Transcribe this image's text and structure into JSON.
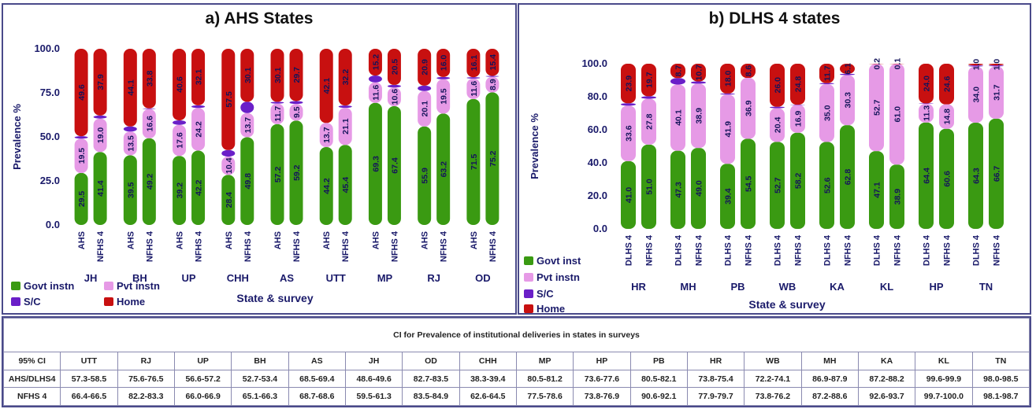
{
  "colors": {
    "govt": "#3a9a12",
    "pvt": "#e69ae6",
    "sc": "#6a1fc8",
    "home": "#c81010"
  },
  "chart_data": [
    {
      "type": "bar",
      "title": "a) AHS States",
      "ylabel": "Prevalence %",
      "xlabel": "State & survey",
      "ylim": [
        0,
        100
      ],
      "yticks": [
        "0.0",
        "25.0",
        "50.0",
        "75.0",
        "100.0"
      ],
      "legend": [
        "Govt instn",
        "Pvt instn",
        "S/C",
        "Home"
      ],
      "groups": [
        {
          "state": "JH",
          "bars": [
            {
              "survey": "AHS",
              "govt": 29.5,
              "pvt": 19.5,
              "sc": 1.4,
              "home": 49.6,
              "labels": [
                "29.5",
                "19.5",
                "",
                "49.6"
              ]
            },
            {
              "survey": "NFHS 4",
              "govt": 41.4,
              "pvt": 19.0,
              "sc": 1.7,
              "home": 37.9,
              "labels": [
                "41.4",
                "19.0",
                "",
                "37.9"
              ]
            }
          ]
        },
        {
          "state": "BH",
          "bars": [
            {
              "survey": "AHS",
              "govt": 39.5,
              "pvt": 13.5,
              "sc": 2.9,
              "home": 44.1,
              "labels": [
                "39.5",
                "13.5",
                "",
                "44.1"
              ]
            },
            {
              "survey": "NFHS 4",
              "govt": 49.2,
              "pvt": 16.6,
              "sc": 0.4,
              "home": 33.8,
              "labels": [
                "49.2",
                "16.6",
                "",
                "33.8"
              ]
            }
          ]
        },
        {
          "state": "UP",
          "bars": [
            {
              "survey": "AHS",
              "govt": 39.2,
              "pvt": 17.6,
              "sc": 2.6,
              "home": 40.6,
              "labels": [
                "39.2",
                "17.6",
                "",
                "40.6"
              ]
            },
            {
              "survey": "NFHS 4",
              "govt": 42.2,
              "pvt": 24.2,
              "sc": 1.5,
              "home": 32.1,
              "labels": [
                "42.2",
                "24.2",
                "",
                "32.1"
              ]
            }
          ]
        },
        {
          "state": "CHH",
          "bars": [
            {
              "survey": "AHS",
              "govt": 28.4,
              "pvt": 10.4,
              "sc": 3.7,
              "home": 57.5,
              "labels": [
                "28.4",
                "10.4",
                "",
                "57.5"
              ]
            },
            {
              "survey": "NFHS 4",
              "govt": 49.8,
              "pvt": 13.7,
              "sc": 6.4,
              "home": 30.1,
              "labels": [
                "49.8",
                "13.7",
                "",
                "30.1"
              ]
            }
          ]
        },
        {
          "state": "AS",
          "bars": [
            {
              "survey": "AHS",
              "govt": 57.2,
              "pvt": 11.7,
              "sc": 1.0,
              "home": 30.1,
              "labels": [
                "57.2",
                "11.7",
                "",
                "30.1"
              ]
            },
            {
              "survey": "NFHS 4",
              "govt": 59.2,
              "pvt": 9.5,
              "sc": 1.6,
              "home": 29.7,
              "labels": [
                "59.2",
                "9.5",
                "",
                "29.7"
              ]
            }
          ]
        },
        {
          "state": "UTT",
          "bars": [
            {
              "survey": "AHS",
              "govt": 44.2,
              "pvt": 13.7,
              "sc": 0.0,
              "home": 42.1,
              "labels": [
                "44.2",
                "13.7",
                "",
                "42.1"
              ]
            },
            {
              "survey": "NFHS 4",
              "govt": 45.4,
              "pvt": 21.1,
              "sc": 1.3,
              "home": 32.2,
              "labels": [
                "45.4",
                "21.1",
                "",
                "32.2"
              ]
            }
          ]
        },
        {
          "state": "MP",
          "bars": [
            {
              "survey": "AHS",
              "govt": 69.3,
              "pvt": 11.6,
              "sc": 3.9,
              "home": 15.2,
              "labels": [
                "69.3",
                "11.6",
                "",
                "15.2"
              ]
            },
            {
              "survey": "NFHS 4",
              "govt": 67.4,
              "pvt": 10.6,
              "sc": 1.5,
              "home": 20.5,
              "labels": [
                "67.4",
                "10.6",
                "",
                "20.5"
              ]
            }
          ]
        },
        {
          "state": "RJ",
          "bars": [
            {
              "survey": "AHS",
              "govt": 55.9,
              "pvt": 20.1,
              "sc": 3.1,
              "home": 20.9,
              "labels": [
                "55.9",
                "20.1",
                "",
                "20.9"
              ]
            },
            {
              "survey": "NFHS 4",
              "govt": 63.2,
              "pvt": 19.5,
              "sc": 1.3,
              "home": 16.0,
              "labels": [
                "63.2",
                "19.5",
                "",
                "16.0"
              ]
            }
          ]
        },
        {
          "state": "OD",
          "bars": [
            {
              "survey": "AHS",
              "govt": 71.5,
              "pvt": 11.6,
              "sc": 0.8,
              "home": 16.1,
              "labels": [
                "71.5",
                "11.6",
                "",
                "16.1"
              ]
            },
            {
              "survey": "NFHS 4",
              "govt": 75.2,
              "pvt": 8.9,
              "sc": 0.5,
              "home": 15.4,
              "labels": [
                "75.2",
                "8.9",
                "",
                "15.4"
              ]
            }
          ]
        }
      ]
    },
    {
      "type": "bar",
      "title": "b) DLHS 4 states",
      "ylabel": "Prevalence %",
      "xlabel": "State & survey",
      "ylim": [
        0,
        100
      ],
      "yticks": [
        "0.0",
        "20.0",
        "40.0",
        "60.0",
        "80.0",
        "100.0"
      ],
      "legend": [
        "Govt inst",
        "Pvt instn",
        "S/C",
        "Home"
      ],
      "groups": [
        {
          "state": "HR",
          "bars": [
            {
              "survey": "DLHS 4",
              "govt": 41.0,
              "pvt": 33.6,
              "sc": 1.5,
              "home": 23.9,
              "labels": [
                "41.0",
                "33.6",
                "",
                "23.9"
              ]
            },
            {
              "survey": "NFHS 4",
              "govt": 51.0,
              "pvt": 27.8,
              "sc": 1.5,
              "home": 19.7,
              "labels": [
                "51.0",
                "27.8",
                "",
                "19.7"
              ]
            }
          ]
        },
        {
          "state": "MH",
          "bars": [
            {
              "survey": "DLHS 4",
              "govt": 47.3,
              "pvt": 40.1,
              "sc": 3.9,
              "home": 8.7,
              "labels": [
                "47.3",
                "40.1",
                "",
                "8.7"
              ]
            },
            {
              "survey": "NFHS 4",
              "govt": 49.0,
              "pvt": 38.9,
              "sc": 1.4,
              "home": 10.7,
              "labels": [
                "49.0",
                "38.9",
                "",
                "10.7"
              ]
            }
          ]
        },
        {
          "state": "PB",
          "bars": [
            {
              "survey": "DLHS 4",
              "govt": 39.4,
              "pvt": 41.9,
              "sc": 0.7,
              "home": 18.0,
              "labels": [
                "39.4",
                "41.9",
                "",
                "18.0"
              ]
            },
            {
              "survey": "NFHS 4",
              "govt": 54.5,
              "pvt": 36.9,
              "sc": 0.0,
              "home": 8.6,
              "labels": [
                "54.5",
                "36.9",
                "",
                "8.6"
              ]
            }
          ]
        },
        {
          "state": "WB",
          "bars": [
            {
              "survey": "DLHS 4",
              "govt": 52.7,
              "pvt": 20.4,
              "sc": 0.9,
              "home": 26.0,
              "labels": [
                "52.7",
                "20.4",
                "",
                "26.0"
              ]
            },
            {
              "survey": "NFHS 4",
              "govt": 58.2,
              "pvt": 16.9,
              "sc": 0.1,
              "home": 24.8,
              "labels": [
                "58.2",
                "16.9",
                "",
                "24.8"
              ]
            }
          ]
        },
        {
          "state": "KA",
          "bars": [
            {
              "survey": "DLHS 4",
              "govt": 52.6,
              "pvt": 35.0,
              "sc": 0.7,
              "home": 11.7,
              "labels": [
                "52.6",
                "35.0",
                "",
                "11.7"
              ]
            },
            {
              "survey": "NFHS 4",
              "govt": 62.8,
              "pvt": 30.3,
              "sc": 0.8,
              "home": 6.1,
              "labels": [
                "62.8",
                "30.3",
                "",
                "6.1"
              ]
            }
          ]
        },
        {
          "state": "KL",
          "bars": [
            {
              "survey": "DLHS 4",
              "govt": 47.1,
              "pvt": 52.7,
              "sc": 0.0,
              "home": 0.2,
              "labels": [
                "47.1",
                "52.7",
                "",
                "0.2"
              ]
            },
            {
              "survey": "NFHS 4",
              "govt": 38.9,
              "pvt": 61.0,
              "sc": 0.0,
              "home": 0.1,
              "labels": [
                "38.9",
                "61.0",
                "",
                "0.1"
              ]
            }
          ]
        },
        {
          "state": "HP",
          "bars": [
            {
              "survey": "DLHS 4",
              "govt": 64.4,
              "pvt": 11.3,
              "sc": 0.3,
              "home": 24.0,
              "labels": [
                "64.4",
                "11.3",
                "",
                "24.0"
              ]
            },
            {
              "survey": "NFHS 4",
              "govt": 60.6,
              "pvt": 14.8,
              "sc": 0.0,
              "home": 24.6,
              "labels": [
                "60.6",
                "14.8",
                "",
                "24.6"
              ]
            }
          ]
        },
        {
          "state": "TN",
          "bars": [
            {
              "survey": "DLHS 4",
              "govt": 64.3,
              "pvt": 34.0,
              "sc": 0.7,
              "home": 1.0,
              "labels": [
                "64.3",
                "34.0",
                "",
                "1.0"
              ]
            },
            {
              "survey": "NFHS 4",
              "govt": 66.7,
              "pvt": 31.7,
              "sc": 0.6,
              "home": 1.0,
              "labels": [
                "66.7",
                "31.7",
                "",
                "1.0"
              ]
            }
          ]
        }
      ]
    },
    {
      "type": "table",
      "title": "CI for Prevalence of institutional deliveries in states in surveys",
      "header": [
        "95% CI",
        "UTT",
        "RJ",
        "UP",
        "BH",
        "AS",
        "JH",
        "OD",
        "CHH",
        "MP",
        "HP",
        "PB",
        "HR",
        "WB",
        "MH",
        "KA",
        "KL",
        "TN"
      ],
      "rows": [
        [
          "AHS/DLHS4",
          "57.3-58.5",
          "75.6-76.5",
          "56.6-57.2",
          "52.7-53.4",
          "68.5-69.4",
          "48.6-49.6",
          "82.7-83.5",
          "38.3-39.4",
          "80.5-81.2",
          "73.6-77.6",
          "80.5-82.1",
          "73.8-75.4",
          "72.2-74.1",
          "86.9-87.9",
          "87.2-88.2",
          "99.6-99.9",
          "98.0-98.5"
        ],
        [
          "NFHS 4",
          "66.4-66.5",
          "82.2-83.3",
          "66.0-66.9",
          "65.1-66.3",
          "68.7-68.6",
          "59.5-61.3",
          "83.5-84.9",
          "62.6-64.5",
          "77.5-78.6",
          "73.8-76.9",
          "90.6-92.1",
          "77.9-79.7",
          "73.8-76.2",
          "87.2-88.6",
          "92.6-93.7",
          "99.7-100.0",
          "98.1-98.7"
        ]
      ]
    }
  ]
}
